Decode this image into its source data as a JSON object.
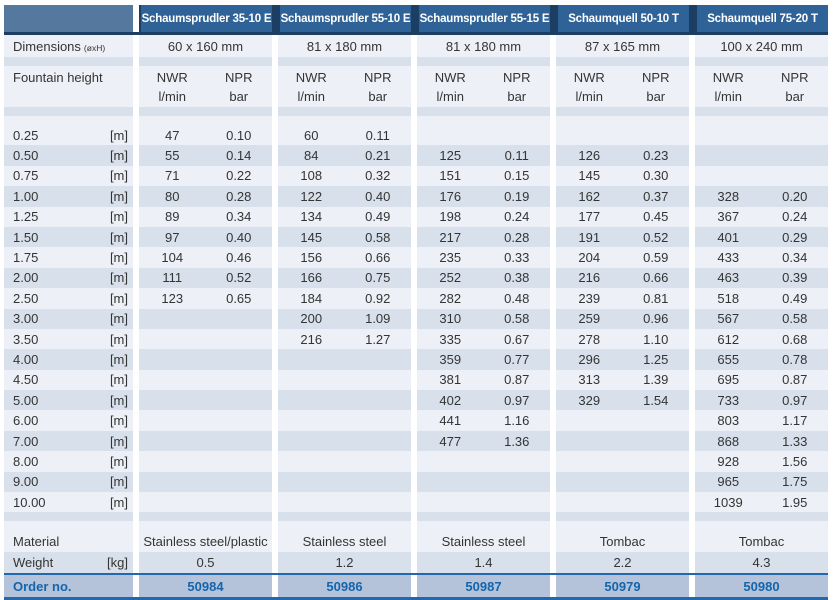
{
  "labels": {
    "dimensions": "Dimensions",
    "dimensions_sub": "(øxH)",
    "fountain_height": "Fountain height",
    "nwr_label": "NWR",
    "nwr_unit": "l/min",
    "npr_label": "NPR",
    "npr_unit": "bar",
    "material": "Material",
    "weight": "Weight",
    "weight_unit": "[kg]",
    "order_no": "Order no.",
    "height_unit": "[m]"
  },
  "products": [
    {
      "name": "Schaumsprudler 35-10 E",
      "dimensions": "60 x 160 mm",
      "material": "Stainless steel/plastic",
      "weight": "0.5",
      "order_no": "50984"
    },
    {
      "name": "Schaumsprudler 55-10 E",
      "dimensions": "81 x 180 mm",
      "material": "Stainless steel",
      "weight": "1.2",
      "order_no": "50986"
    },
    {
      "name": "Schaumsprudler 55-15 E",
      "dimensions": "81 x 180 mm",
      "material": "Stainless steel",
      "weight": "1.4",
      "order_no": "50987"
    },
    {
      "name": "Schaumquell 50-10 T",
      "dimensions": "87 x 165 mm",
      "material": "Tombac",
      "weight": "2.2",
      "order_no": "50979"
    },
    {
      "name": "Schaumquell 75-20 T",
      "dimensions": "100 x 240 mm",
      "material": "Tombac",
      "weight": "4.3",
      "order_no": "50980"
    }
  ],
  "table": {
    "rows": [
      {
        "height": "0.25",
        "unit": "[m]",
        "values": [
          [
            "47",
            "0.10"
          ],
          [
            "60",
            "0.11"
          ],
          [
            "",
            ""
          ],
          [
            "",
            ""
          ],
          [
            "",
            ""
          ]
        ]
      },
      {
        "height": "0.50",
        "unit": "[m]",
        "values": [
          [
            "55",
            "0.14"
          ],
          [
            "84",
            "0.21"
          ],
          [
            "125",
            "0.11"
          ],
          [
            "126",
            "0.23"
          ],
          [
            "",
            ""
          ]
        ]
      },
      {
        "height": "0.75",
        "unit": "[m]",
        "values": [
          [
            "71",
            "0.22"
          ],
          [
            "108",
            "0.32"
          ],
          [
            "151",
            "0.15"
          ],
          [
            "145",
            "0.30"
          ],
          [
            "",
            ""
          ]
        ]
      },
      {
        "height": "1.00",
        "unit": "[m]",
        "values": [
          [
            "80",
            "0.28"
          ],
          [
            "122",
            "0.40"
          ],
          [
            "176",
            "0.19"
          ],
          [
            "162",
            "0.37"
          ],
          [
            "328",
            "0.20"
          ]
        ]
      },
      {
        "height": "1.25",
        "unit": "[m]",
        "values": [
          [
            "89",
            "0.34"
          ],
          [
            "134",
            "0.49"
          ],
          [
            "198",
            "0.24"
          ],
          [
            "177",
            "0.45"
          ],
          [
            "367",
            "0.24"
          ]
        ]
      },
      {
        "height": "1.50",
        "unit": "[m]",
        "values": [
          [
            "97",
            "0.40"
          ],
          [
            "145",
            "0.58"
          ],
          [
            "217",
            "0.28"
          ],
          [
            "191",
            "0.52"
          ],
          [
            "401",
            "0.29"
          ]
        ]
      },
      {
        "height": "1.75",
        "unit": "[m]",
        "values": [
          [
            "104",
            "0.46"
          ],
          [
            "156",
            "0.66"
          ],
          [
            "235",
            "0.33"
          ],
          [
            "204",
            "0.59"
          ],
          [
            "433",
            "0.34"
          ]
        ]
      },
      {
        "height": "2.00",
        "unit": "[m]",
        "values": [
          [
            "111",
            "0.52"
          ],
          [
            "166",
            "0.75"
          ],
          [
            "252",
            "0.38"
          ],
          [
            "216",
            "0.66"
          ],
          [
            "463",
            "0.39"
          ]
        ]
      },
      {
        "height": "2.50",
        "unit": "[m]",
        "values": [
          [
            "123",
            "0.65"
          ],
          [
            "184",
            "0.92"
          ],
          [
            "282",
            "0.48"
          ],
          [
            "239",
            "0.81"
          ],
          [
            "518",
            "0.49"
          ]
        ]
      },
      {
        "height": "3.00",
        "unit": "[m]",
        "values": [
          [
            "",
            ""
          ],
          [
            "200",
            "1.09"
          ],
          [
            "310",
            "0.58"
          ],
          [
            "259",
            "0.96"
          ],
          [
            "567",
            "0.58"
          ]
        ]
      },
      {
        "height": "3.50",
        "unit": "[m]",
        "values": [
          [
            "",
            ""
          ],
          [
            "216",
            "1.27"
          ],
          [
            "335",
            "0.67"
          ],
          [
            "278",
            "1.10"
          ],
          [
            "612",
            "0.68"
          ]
        ]
      },
      {
        "height": "4.00",
        "unit": "[m]",
        "values": [
          [
            "",
            ""
          ],
          [
            "",
            ""
          ],
          [
            "359",
            "0.77"
          ],
          [
            "296",
            "1.25"
          ],
          [
            "655",
            "0.78"
          ]
        ]
      },
      {
        "height": "4.50",
        "unit": "[m]",
        "values": [
          [
            "",
            ""
          ],
          [
            "",
            ""
          ],
          [
            "381",
            "0.87"
          ],
          [
            "313",
            "1.39"
          ],
          [
            "695",
            "0.87"
          ]
        ]
      },
      {
        "height": "5.00",
        "unit": "[m]",
        "values": [
          [
            "",
            ""
          ],
          [
            "",
            ""
          ],
          [
            "402",
            "0.97"
          ],
          [
            "329",
            "1.54"
          ],
          [
            "733",
            "0.97"
          ]
        ]
      },
      {
        "height": "6.00",
        "unit": "[m]",
        "values": [
          [
            "",
            ""
          ],
          [
            "",
            ""
          ],
          [
            "441",
            "1.16"
          ],
          [
            "",
            ""
          ],
          [
            "803",
            "1.17"
          ]
        ]
      },
      {
        "height": "7.00",
        "unit": "[m]",
        "values": [
          [
            "",
            ""
          ],
          [
            "",
            ""
          ],
          [
            "477",
            "1.36"
          ],
          [
            "",
            ""
          ],
          [
            "868",
            "1.33"
          ]
        ]
      },
      {
        "height": "8.00",
        "unit": "[m]",
        "values": [
          [
            "",
            ""
          ],
          [
            "",
            ""
          ],
          [
            "",
            ""
          ],
          [
            "",
            ""
          ],
          [
            "928",
            "1.56"
          ]
        ]
      },
      {
        "height": "9.00",
        "unit": "[m]",
        "values": [
          [
            "",
            ""
          ],
          [
            "",
            ""
          ],
          [
            "",
            ""
          ],
          [
            "",
            ""
          ],
          [
            "965",
            "1.75"
          ]
        ]
      },
      {
        "height": "10.00",
        "unit": "[m]",
        "values": [
          [
            "",
            ""
          ],
          [
            "",
            ""
          ],
          [
            "",
            ""
          ],
          [
            "",
            ""
          ],
          [
            "1039",
            "1.95"
          ]
        ]
      }
    ]
  },
  "colors": {
    "header_blue": "#2f6398",
    "corner_blue": "#55789f",
    "navy_border": "#1d3e63",
    "row_light": "#edf0f6",
    "row_dark": "#d8e0ec",
    "order_bg": "#b4c3d9",
    "order_text": "#1465ad",
    "order_border": "#2268ae"
  }
}
